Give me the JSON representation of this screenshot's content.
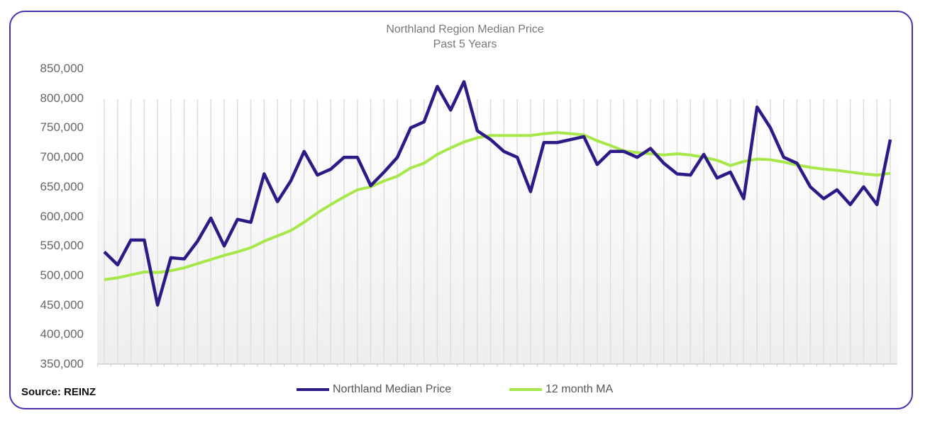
{
  "chart_data": {
    "type": "line",
    "title": "Northland Region Median Price",
    "subtitle": "Past 5 Years",
    "xlabel": "",
    "ylabel": "",
    "ylim": [
      350000,
      850000
    ],
    "y_ticks": [
      "850,000",
      "800,000",
      "750,000",
      "700,000",
      "650,000",
      "600,000",
      "550,000",
      "500,000",
      "450,000",
      "400,000",
      "350,000"
    ],
    "grid": "vertical lines per month",
    "legend_position": "bottom",
    "series": [
      {
        "name": "Northland Median Price",
        "color": "#2e1a87",
        "values": [
          540000,
          518000,
          560000,
          560000,
          450000,
          530000,
          528000,
          558000,
          597000,
          550000,
          595000,
          590000,
          672000,
          625000,
          660000,
          710000,
          670000,
          680000,
          700000,
          700000,
          652000,
          675000,
          700000,
          750000,
          760000,
          820000,
          780000,
          828000,
          745000,
          730000,
          710000,
          700000,
          642000,
          725000,
          725000,
          730000,
          735000,
          688000,
          710000,
          710000,
          700000,
          715000,
          690000,
          672000,
          670000,
          705000,
          665000,
          675000,
          630000,
          785000,
          750000,
          700000,
          690000,
          650000,
          630000,
          645000,
          620000,
          650000,
          620000,
          730000
        ]
      },
      {
        "name": "12 month MA",
        "color": "#a6e84a",
        "values": [
          493000,
          496000,
          501000,
          506000,
          505000,
          508000,
          513000,
          520000,
          527000,
          534000,
          540000,
          547000,
          558000,
          567000,
          576000,
          590000,
          606000,
          620000,
          633000,
          645000,
          650000,
          660000,
          668000,
          682000,
          690000,
          705000,
          716000,
          726000,
          733000,
          737000,
          737000,
          737000,
          737000,
          740000,
          742000,
          740000,
          738000,
          728000,
          720000,
          711000,
          708000,
          706000,
          704000,
          706000,
          704000,
          700000,
          695000,
          686000,
          693000,
          697000,
          696000,
          692000,
          687000,
          683000,
          680000,
          678000,
          675000,
          672000,
          670000,
          673000
        ]
      }
    ]
  },
  "source": "Source: REINZ"
}
